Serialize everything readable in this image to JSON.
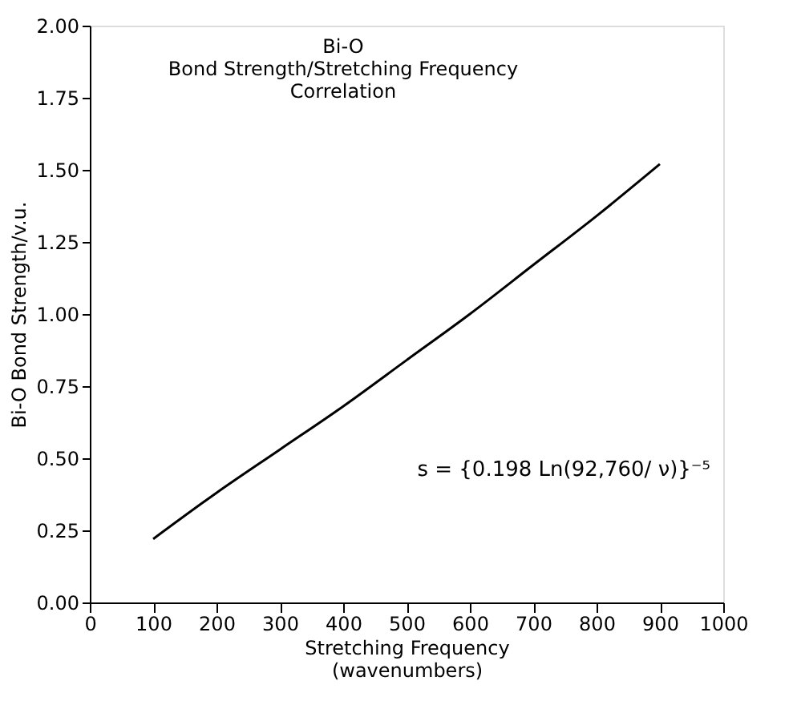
{
  "chart_data": {
    "type": "line",
    "title": "Bi-O\nBond Strength/Stretching Frequency\nCorrelation",
    "xlabel": "Stretching Frequency\n(wavenumbers)",
    "ylabel": "Bi-O Bond Strength/v.u.",
    "x": [
      100,
      200,
      300,
      400,
      500,
      600,
      700,
      800,
      900
    ],
    "series": [
      {
        "color": "#000000",
        "values": [
          0.22,
          0.38,
          0.53,
          0.68,
          0.84,
          1.0,
          1.17,
          1.34,
          1.52
        ]
      }
    ],
    "annotations": [
      "s = {0.198 Ln(92,760/ ν)}⁻⁵"
    ],
    "xlim": [
      0,
      1000
    ],
    "ylim": [
      0,
      2
    ],
    "xticks": [
      0,
      100,
      200,
      300,
      400,
      500,
      600,
      700,
      800,
      900,
      1000
    ],
    "yticks": [
      {
        "value": 0,
        "label": "0.00"
      },
      {
        "value": 0.25,
        "label": "0.25"
      },
      {
        "value": 0.5,
        "label": "0.50"
      },
      {
        "value": 0.75,
        "label": "0.75"
      },
      {
        "value": 1,
        "label": "1.00"
      },
      {
        "value": 1.25,
        "label": "1.25"
      },
      {
        "value": 1.5,
        "label": "1.50"
      },
      {
        "value": 1.75,
        "label": "1.75"
      },
      {
        "value": 2,
        "label": "2.00"
      }
    ],
    "grid": false,
    "legend": false,
    "marker": "none",
    "line_style": "solid"
  }
}
